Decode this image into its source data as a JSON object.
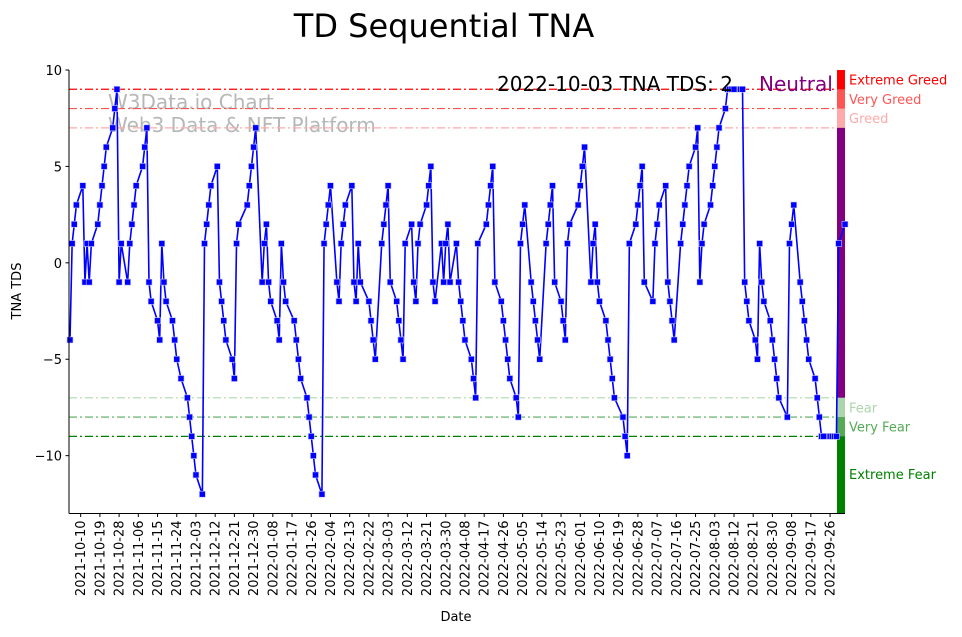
{
  "chart_data": {
    "type": "line",
    "title": "TD Sequential TNA",
    "xlabel": "Date",
    "ylabel": "TNA TDS",
    "ylim": [
      -13,
      10
    ],
    "xlim": [
      "2021-10-05",
      "2022-10-03"
    ],
    "grid": false,
    "series_color": "#0000ff",
    "start_date": "2021-10-05",
    "x_is_trading_days": true,
    "yticks": [
      {
        "value": 10,
        "label": "10"
      },
      {
        "value": 5,
        "label": "5"
      },
      {
        "value": 0,
        "label": "0"
      },
      {
        "value": -5,
        "label": "−5"
      },
      {
        "value": -10,
        "label": "−10"
      }
    ],
    "xticks": [
      "2021-10-10",
      "2021-10-19",
      "2021-10-28",
      "2021-11-06",
      "2021-11-15",
      "2021-11-24",
      "2021-12-03",
      "2021-12-12",
      "2021-12-21",
      "2021-12-30",
      "2022-01-08",
      "2022-01-17",
      "2022-01-26",
      "2022-02-04",
      "2022-02-13",
      "2022-02-22",
      "2022-03-03",
      "2022-03-12",
      "2022-03-21",
      "2022-03-30",
      "2022-04-08",
      "2022-04-17",
      "2022-04-26",
      "2022-05-05",
      "2022-05-14",
      "2022-05-23",
      "2022-06-01",
      "2022-06-10",
      "2022-06-19",
      "2022-06-28",
      "2022-07-07",
      "2022-07-16",
      "2022-07-25",
      "2022-08-03",
      "2022-08-12",
      "2022-08-21",
      "2022-08-30",
      "2022-09-08",
      "2022-09-17",
      "2022-09-26"
    ],
    "values": [
      -4,
      1,
      2,
      3,
      4,
      -1,
      1,
      -1,
      1,
      2,
      3,
      4,
      5,
      6,
      7,
      8,
      9,
      -1,
      1,
      -1,
      1,
      2,
      3,
      4,
      5,
      6,
      7,
      -1,
      -2,
      -3,
      -4,
      1,
      -1,
      -2,
      -3,
      -4,
      -5,
      -6,
      -7,
      -8,
      -9,
      -10,
      -11,
      -12,
      1,
      2,
      3,
      4,
      5,
      -1,
      -2,
      -3,
      -4,
      -5,
      -6,
      1,
      2,
      3,
      4,
      5,
      6,
      7,
      -1,
      1,
      2,
      -1,
      -2,
      -3,
      -4,
      1,
      -1,
      -2,
      -3,
      -4,
      -5,
      -6,
      -7,
      -8,
      -9,
      -10,
      -11,
      -12,
      1,
      2,
      3,
      4,
      -1,
      -2,
      1,
      2,
      3,
      4,
      -1,
      -2,
      1,
      -1,
      -2,
      -3,
      -4,
      -5,
      1,
      2,
      3,
      4,
      -1,
      -2,
      -3,
      -4,
      -5,
      1,
      2,
      -1,
      -2,
      1,
      2,
      3,
      4,
      5,
      -1,
      -2,
      1,
      -1,
      1,
      2,
      -1,
      1,
      -1,
      -2,
      -3,
      -4,
      -5,
      -6,
      -7,
      1,
      2,
      3,
      4,
      5,
      -1,
      -2,
      -3,
      -4,
      -5,
      -6,
      -7,
      -8,
      1,
      2,
      3,
      -1,
      -2,
      -3,
      -4,
      -5,
      1,
      2,
      3,
      4,
      -1,
      -2,
      -3,
      -4,
      1,
      2,
      3,
      4,
      5,
      6,
      -1,
      1,
      2,
      -1,
      -2,
      -3,
      -4,
      -5,
      -6,
      -7,
      -8,
      -9,
      -10,
      1,
      2,
      3,
      4,
      5,
      -1,
      -2,
      1,
      2,
      3,
      4,
      -1,
      -2,
      -3,
      -4,
      1,
      2,
      3,
      4,
      5,
      6,
      7,
      -1,
      1,
      2,
      3,
      4,
      5,
      6,
      7,
      8,
      9,
      9,
      9,
      9,
      9,
      9,
      -1,
      -2,
      -3,
      -4,
      -5,
      1,
      -1,
      -2,
      -3,
      -4,
      -5,
      -6,
      -7,
      -8,
      1,
      2,
      3,
      -1,
      -2,
      -3,
      -4,
      -5,
      -6,
      -7,
      -8,
      -9,
      -9,
      -9,
      -9,
      -9,
      -9,
      1,
      2
    ],
    "threshold_lines": [
      {
        "value": 9,
        "color": "#ff0000"
      },
      {
        "value": 8,
        "color": "#ff5555"
      },
      {
        "value": 7,
        "color": "#ffaaaa"
      },
      {
        "value": -7,
        "color": "#aadcaa"
      },
      {
        "value": -8,
        "color": "#55aa55"
      },
      {
        "value": -9,
        "color": "#008000"
      }
    ],
    "zones": [
      {
        "label": "Extreme Greed",
        "from": 9,
        "to": 10,
        "color": "#ff0000",
        "show_label": true
      },
      {
        "label": "Very Greed",
        "from": 8,
        "to": 9,
        "color": "#ff5555",
        "show_label": true
      },
      {
        "label": "Greed",
        "from": 7,
        "to": 8,
        "color": "#ffaaaa",
        "show_label": true
      },
      {
        "label": "Neutral",
        "from": -7,
        "to": 7,
        "color": "#800080",
        "show_label": false
      },
      {
        "label": "Fear",
        "from": -8,
        "to": -7,
        "color": "#aad6aa",
        "show_label": true
      },
      {
        "label": "Very Fear",
        "from": -9,
        "to": -8,
        "color": "#55aa55",
        "show_label": true
      },
      {
        "label": "Extreme Fear",
        "from": -13,
        "to": -9,
        "color": "#008000",
        "show_label": true
      }
    ],
    "annotation": {
      "text": "2022-10-03 TNA TDS: 2",
      "status": "Neutral",
      "status_color": "#800080"
    },
    "watermark": {
      "line1": "W3Data.io Chart",
      "line2": "Web3 Data & NFT Platform"
    }
  }
}
